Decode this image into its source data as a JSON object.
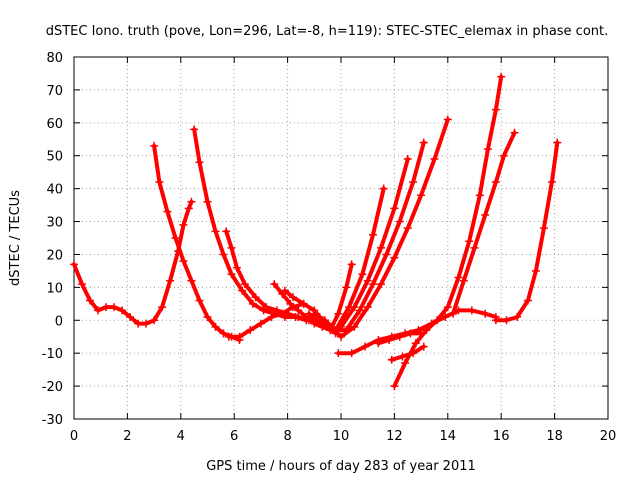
{
  "chart_data": {
    "type": "scatter",
    "title": "dSTEC Iono. truth (pove, Lon=296, Lat=-8, h=119): STEC-STEC_elemax in phase cont.",
    "xlabel": "GPS time / hours of day 283 of year 2011",
    "ylabel": "dSTEC  / TECUs",
    "xlim": [
      0,
      20
    ],
    "ylim": [
      -30,
      80
    ],
    "x_ticks": [
      "0",
      "2",
      "4",
      "6",
      "8",
      "10",
      "12",
      "14",
      "16",
      "18",
      "20"
    ],
    "y_ticks": [
      "-30",
      "-20",
      "-10",
      "0",
      "10",
      "20",
      "30",
      "40",
      "50",
      "60",
      "70",
      "80"
    ],
    "grid": true,
    "marker": "plus",
    "color": "#ff0000",
    "series": [
      {
        "x": [
          0.0,
          0.3,
          0.6,
          0.9,
          1.2,
          1.5,
          1.8,
          2.1,
          2.4,
          2.7,
          3.0,
          3.3,
          3.6,
          3.9,
          4.1,
          4.3,
          4.4
        ],
        "values": [
          17,
          11,
          6,
          3,
          4,
          4,
          3,
          1,
          -1,
          -1,
          0,
          4,
          12,
          21,
          29,
          34,
          36
        ]
      },
      {
        "x": [
          3.0,
          3.2,
          3.5,
          3.8,
          4.1,
          4.4,
          4.7,
          5.0,
          5.3,
          5.6,
          5.9,
          6.2
        ],
        "values": [
          53,
          42,
          33,
          25,
          18,
          12,
          6,
          1,
          -2,
          -4,
          -5,
          -6
        ]
      },
      {
        "x": [
          4.5,
          4.7,
          5.0,
          5.3,
          5.6,
          5.9,
          6.3,
          6.7,
          7.1,
          7.5,
          7.9,
          8.3,
          8.7,
          9.1,
          9.5,
          9.8
        ],
        "values": [
          58,
          48,
          36,
          27,
          20,
          14,
          9,
          5,
          3,
          2,
          1,
          1,
          0,
          0,
          -2,
          -4
        ]
      },
      {
        "x": [
          5.7,
          5.9,
          6.1,
          6.4,
          6.8,
          7.2,
          7.6,
          8.0,
          8.4,
          8.8,
          9.2,
          9.6
        ],
        "values": [
          27,
          22,
          16,
          11,
          7,
          4,
          3,
          2,
          1,
          0,
          -1,
          -3
        ]
      },
      {
        "x": [
          5.8,
          6.2,
          6.6,
          7.0,
          7.4,
          7.8,
          8.2,
          8.6
        ],
        "values": [
          -5,
          -5,
          -3,
          -1,
          1,
          2,
          4,
          5
        ]
      },
      {
        "x": [
          7.5,
          7.8,
          8.1,
          8.4,
          8.7,
          9.0,
          9.3,
          9.6,
          9.9,
          10.2,
          10.4
        ],
        "values": [
          11,
          8,
          5,
          3,
          1,
          -1,
          -2,
          -3,
          2,
          10,
          17
        ]
      },
      {
        "x": [
          7.9,
          8.2,
          8.6,
          9.0,
          9.4,
          9.8,
          10.3,
          10.8,
          11.2,
          11.6
        ],
        "values": [
          9,
          7,
          5,
          3,
          -1,
          -3,
          4,
          14,
          26,
          40
        ]
      },
      {
        "x": [
          8.8,
          9.2,
          9.6,
          10.0,
          10.5,
          11.0,
          11.5,
          12.0,
          12.5
        ],
        "values": [
          2,
          -1,
          -3,
          -2,
          4,
          12,
          22,
          34,
          49
        ]
      },
      {
        "x": [
          9.0,
          9.4,
          9.8,
          10.2,
          10.7,
          11.2,
          11.7,
          12.2,
          12.7,
          13.1
        ],
        "values": [
          2,
          0,
          -3,
          -3,
          3,
          11,
          20,
          30,
          42,
          54
        ]
      },
      {
        "x": [
          9.2,
          9.6,
          10.0,
          10.5,
          11.0,
          11.5,
          12.0,
          12.5,
          13.0,
          13.5,
          14.0
        ],
        "values": [
          1,
          -2,
          -5,
          -2,
          4,
          11,
          19,
          28,
          38,
          49,
          61
        ]
      },
      {
        "x": [
          9.9,
          10.4,
          10.9,
          11.4,
          11.9,
          12.4,
          12.9,
          13.4,
          13.9,
          14.4,
          14.9,
          15.4,
          15.8
        ],
        "values": [
          -10,
          -10,
          -8,
          -6,
          -5,
          -4,
          -3,
          -1,
          1,
          3,
          3,
          2,
          1
        ]
      },
      {
        "x": [
          11.4,
          11.8,
          12.2,
          12.6,
          13.0
        ],
        "values": [
          -7,
          -6,
          -5,
          -4,
          -4
        ]
      },
      {
        "x": [
          11.9,
          12.3,
          12.7,
          13.1
        ],
        "values": [
          -12,
          -11,
          -10,
          -8
        ]
      },
      {
        "x": [
          12.0,
          12.4,
          12.8,
          13.2,
          13.6,
          14.0,
          14.4,
          14.8,
          15.2,
          15.5,
          15.8,
          16.0
        ],
        "values": [
          -20,
          -13,
          -7,
          -3,
          0,
          4,
          13,
          24,
          38,
          52,
          64,
          74
        ]
      },
      {
        "x": [
          14.2,
          14.6,
          15.0,
          15.4,
          15.8,
          16.1,
          16.5
        ],
        "values": [
          2,
          12,
          22,
          32,
          42,
          50,
          57
        ]
      },
      {
        "x": [
          15.8,
          16.2,
          16.6,
          17.0,
          17.3,
          17.6,
          17.9,
          18.1
        ],
        "values": [
          0,
          0,
          1,
          6,
          15,
          28,
          42,
          54
        ]
      }
    ]
  }
}
